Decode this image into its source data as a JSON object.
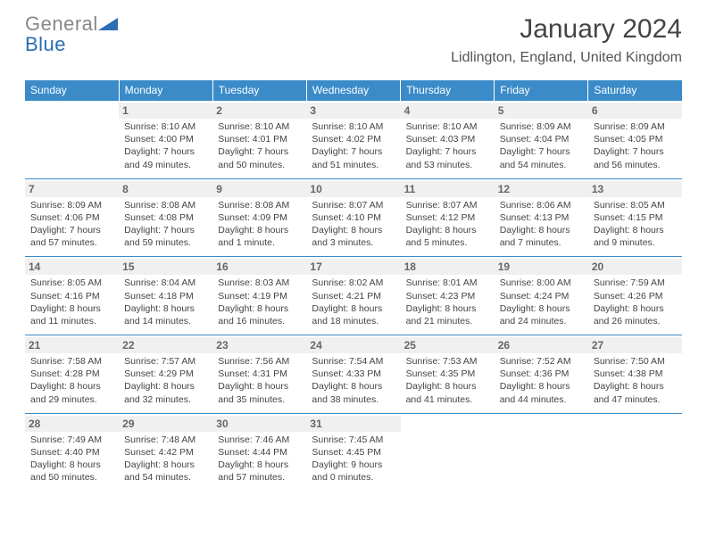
{
  "logo": {
    "text_grey": "General",
    "text_blue": "Blue"
  },
  "title": "January 2024",
  "location": "Lidlington, England, United Kingdom",
  "colors": {
    "header_bg": "#3b8bc9",
    "header_text": "#ffffff",
    "daynum_bg": "#f0f0f0",
    "daynum_text": "#666666",
    "border": "#3b8bc9",
    "logo_grey": "#888888",
    "logo_blue": "#2a6db3"
  },
  "daysOfWeek": [
    "Sunday",
    "Monday",
    "Tuesday",
    "Wednesday",
    "Thursday",
    "Friday",
    "Saturday"
  ],
  "weeks": [
    [
      {
        "n": "",
        "sunrise": "",
        "sunset": "",
        "daylight": ""
      },
      {
        "n": "1",
        "sunrise": "Sunrise: 8:10 AM",
        "sunset": "Sunset: 4:00 PM",
        "daylight": "Daylight: 7 hours and 49 minutes."
      },
      {
        "n": "2",
        "sunrise": "Sunrise: 8:10 AM",
        "sunset": "Sunset: 4:01 PM",
        "daylight": "Daylight: 7 hours and 50 minutes."
      },
      {
        "n": "3",
        "sunrise": "Sunrise: 8:10 AM",
        "sunset": "Sunset: 4:02 PM",
        "daylight": "Daylight: 7 hours and 51 minutes."
      },
      {
        "n": "4",
        "sunrise": "Sunrise: 8:10 AM",
        "sunset": "Sunset: 4:03 PM",
        "daylight": "Daylight: 7 hours and 53 minutes."
      },
      {
        "n": "5",
        "sunrise": "Sunrise: 8:09 AM",
        "sunset": "Sunset: 4:04 PM",
        "daylight": "Daylight: 7 hours and 54 minutes."
      },
      {
        "n": "6",
        "sunrise": "Sunrise: 8:09 AM",
        "sunset": "Sunset: 4:05 PM",
        "daylight": "Daylight: 7 hours and 56 minutes."
      }
    ],
    [
      {
        "n": "7",
        "sunrise": "Sunrise: 8:09 AM",
        "sunset": "Sunset: 4:06 PM",
        "daylight": "Daylight: 7 hours and 57 minutes."
      },
      {
        "n": "8",
        "sunrise": "Sunrise: 8:08 AM",
        "sunset": "Sunset: 4:08 PM",
        "daylight": "Daylight: 7 hours and 59 minutes."
      },
      {
        "n": "9",
        "sunrise": "Sunrise: 8:08 AM",
        "sunset": "Sunset: 4:09 PM",
        "daylight": "Daylight: 8 hours and 1 minute."
      },
      {
        "n": "10",
        "sunrise": "Sunrise: 8:07 AM",
        "sunset": "Sunset: 4:10 PM",
        "daylight": "Daylight: 8 hours and 3 minutes."
      },
      {
        "n": "11",
        "sunrise": "Sunrise: 8:07 AM",
        "sunset": "Sunset: 4:12 PM",
        "daylight": "Daylight: 8 hours and 5 minutes."
      },
      {
        "n": "12",
        "sunrise": "Sunrise: 8:06 AM",
        "sunset": "Sunset: 4:13 PM",
        "daylight": "Daylight: 8 hours and 7 minutes."
      },
      {
        "n": "13",
        "sunrise": "Sunrise: 8:05 AM",
        "sunset": "Sunset: 4:15 PM",
        "daylight": "Daylight: 8 hours and 9 minutes."
      }
    ],
    [
      {
        "n": "14",
        "sunrise": "Sunrise: 8:05 AM",
        "sunset": "Sunset: 4:16 PM",
        "daylight": "Daylight: 8 hours and 11 minutes."
      },
      {
        "n": "15",
        "sunrise": "Sunrise: 8:04 AM",
        "sunset": "Sunset: 4:18 PM",
        "daylight": "Daylight: 8 hours and 14 minutes."
      },
      {
        "n": "16",
        "sunrise": "Sunrise: 8:03 AM",
        "sunset": "Sunset: 4:19 PM",
        "daylight": "Daylight: 8 hours and 16 minutes."
      },
      {
        "n": "17",
        "sunrise": "Sunrise: 8:02 AM",
        "sunset": "Sunset: 4:21 PM",
        "daylight": "Daylight: 8 hours and 18 minutes."
      },
      {
        "n": "18",
        "sunrise": "Sunrise: 8:01 AM",
        "sunset": "Sunset: 4:23 PM",
        "daylight": "Daylight: 8 hours and 21 minutes."
      },
      {
        "n": "19",
        "sunrise": "Sunrise: 8:00 AM",
        "sunset": "Sunset: 4:24 PM",
        "daylight": "Daylight: 8 hours and 24 minutes."
      },
      {
        "n": "20",
        "sunrise": "Sunrise: 7:59 AM",
        "sunset": "Sunset: 4:26 PM",
        "daylight": "Daylight: 8 hours and 26 minutes."
      }
    ],
    [
      {
        "n": "21",
        "sunrise": "Sunrise: 7:58 AM",
        "sunset": "Sunset: 4:28 PM",
        "daylight": "Daylight: 8 hours and 29 minutes."
      },
      {
        "n": "22",
        "sunrise": "Sunrise: 7:57 AM",
        "sunset": "Sunset: 4:29 PM",
        "daylight": "Daylight: 8 hours and 32 minutes."
      },
      {
        "n": "23",
        "sunrise": "Sunrise: 7:56 AM",
        "sunset": "Sunset: 4:31 PM",
        "daylight": "Daylight: 8 hours and 35 minutes."
      },
      {
        "n": "24",
        "sunrise": "Sunrise: 7:54 AM",
        "sunset": "Sunset: 4:33 PM",
        "daylight": "Daylight: 8 hours and 38 minutes."
      },
      {
        "n": "25",
        "sunrise": "Sunrise: 7:53 AM",
        "sunset": "Sunset: 4:35 PM",
        "daylight": "Daylight: 8 hours and 41 minutes."
      },
      {
        "n": "26",
        "sunrise": "Sunrise: 7:52 AM",
        "sunset": "Sunset: 4:36 PM",
        "daylight": "Daylight: 8 hours and 44 minutes."
      },
      {
        "n": "27",
        "sunrise": "Sunrise: 7:50 AM",
        "sunset": "Sunset: 4:38 PM",
        "daylight": "Daylight: 8 hours and 47 minutes."
      }
    ],
    [
      {
        "n": "28",
        "sunrise": "Sunrise: 7:49 AM",
        "sunset": "Sunset: 4:40 PM",
        "daylight": "Daylight: 8 hours and 50 minutes."
      },
      {
        "n": "29",
        "sunrise": "Sunrise: 7:48 AM",
        "sunset": "Sunset: 4:42 PM",
        "daylight": "Daylight: 8 hours and 54 minutes."
      },
      {
        "n": "30",
        "sunrise": "Sunrise: 7:46 AM",
        "sunset": "Sunset: 4:44 PM",
        "daylight": "Daylight: 8 hours and 57 minutes."
      },
      {
        "n": "31",
        "sunrise": "Sunrise: 7:45 AM",
        "sunset": "Sunset: 4:45 PM",
        "daylight": "Daylight: 9 hours and 0 minutes."
      },
      {
        "n": "",
        "sunrise": "",
        "sunset": "",
        "daylight": ""
      },
      {
        "n": "",
        "sunrise": "",
        "sunset": "",
        "daylight": ""
      },
      {
        "n": "",
        "sunrise": "",
        "sunset": "",
        "daylight": ""
      }
    ]
  ]
}
